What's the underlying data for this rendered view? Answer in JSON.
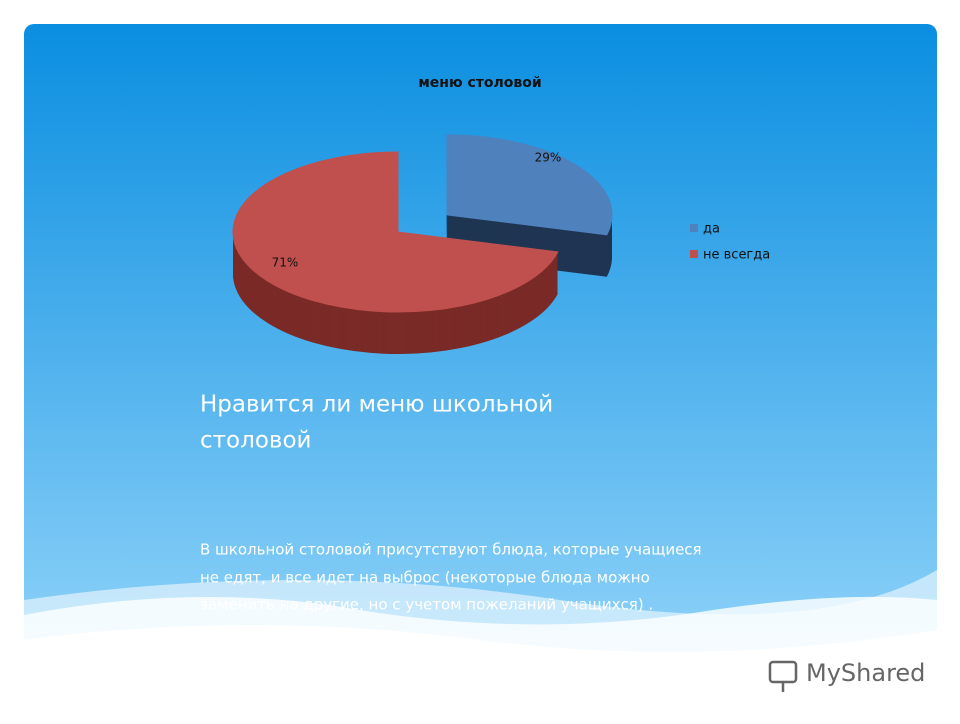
{
  "chart_data": {
    "type": "pie",
    "title": "меню столовой",
    "categories": [
      "да",
      "не всегда"
    ],
    "values": [
      29,
      71
    ],
    "value_labels": [
      "29%",
      "71%"
    ],
    "colors": [
      "#4f81bd",
      "#c0504d"
    ],
    "side_colors": [
      "#1f3552",
      "#7a2a27"
    ],
    "legend": "right"
  },
  "slide": {
    "heading_lines": [
      "Нравится ли меню школьной",
      "столовой"
    ],
    "body_lines": [
      "В школьной столовой присутствуют блюда, которые учащиеся",
      "не едят, и все идет на выброс (некоторые блюда можно",
      "заменить на другие, но с учетом пожеланий учащихся) ."
    ],
    "logo": "MyShared"
  }
}
